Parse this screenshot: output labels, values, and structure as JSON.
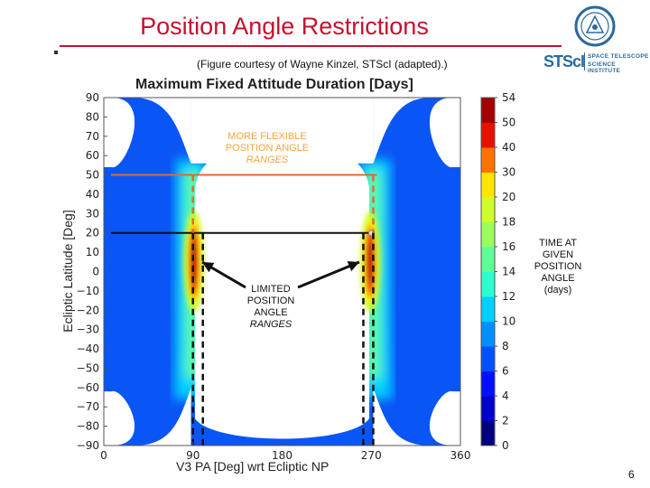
{
  "slide": {
    "title": "Position Angle Restrictions",
    "credit": "(Figure courtesy of Wayne Kinzel, STScI (adapted).)",
    "page_number": "6"
  },
  "logo": {
    "wordmark": "STScI",
    "line1": "SPACE TELESCOPE",
    "line2": "SCIENCE INSTITUTE",
    "brand_color": "#2c6a9e"
  },
  "annotations": {
    "flexible": [
      "MORE FLEXIBLE",
      "POSITION ANGLE",
      "RANGES"
    ],
    "limited": [
      "LIMITED",
      "POSITION",
      "ANGLE",
      "RANGES"
    ],
    "time": [
      "TIME AT",
      "GIVEN",
      "POSITION",
      "ANGLE",
      "(days)"
    ]
  },
  "colors": {
    "title": "#c8102e",
    "flexible_note": "#f7a440",
    "orange_line": "#e06a35"
  },
  "chart_data": {
    "type": "heatmap",
    "title": "Maximum Fixed Attitude Duration [Days]",
    "xlabel": "V3 PA [Deg] wrt Ecliptic NP",
    "ylabel": "Ecliptic Latitude [Deg]",
    "xlim": [
      0,
      360
    ],
    "ylim": [
      -90,
      90
    ],
    "x_ticks": [
      "0",
      "90",
      "180",
      "270",
      "360"
    ],
    "y_ticks": [
      "90",
      "80",
      "70",
      "60",
      "50",
      "40",
      "30",
      "20",
      "10",
      "0",
      "−10",
      "−20",
      "−30",
      "−40",
      "−50",
      "−60",
      "−70",
      "−80",
      "−90"
    ],
    "colorbar": {
      "ticks": [
        "0",
        "2",
        "4",
        "6",
        "8",
        "10",
        "12",
        "14",
        "16",
        "18",
        "20",
        "30",
        "40",
        "50",
        "54"
      ],
      "colors": [
        "#00007f",
        "#0000cd",
        "#0010ff",
        "#0050ff",
        "#0090ff",
        "#00d0ff",
        "#2bffce",
        "#5eff99",
        "#99ff5e",
        "#ceff2b",
        "#ffe600",
        "#ff7300",
        "#e81000",
        "#a50000"
      ]
    },
    "reference_lines": {
      "orange_latitude": 50,
      "black_latitude": 20,
      "pa_left_outer": 90,
      "pa_left_inner": 100,
      "pa_right_inner": 262,
      "pa_right_outer": 272
    },
    "grid": false
  }
}
